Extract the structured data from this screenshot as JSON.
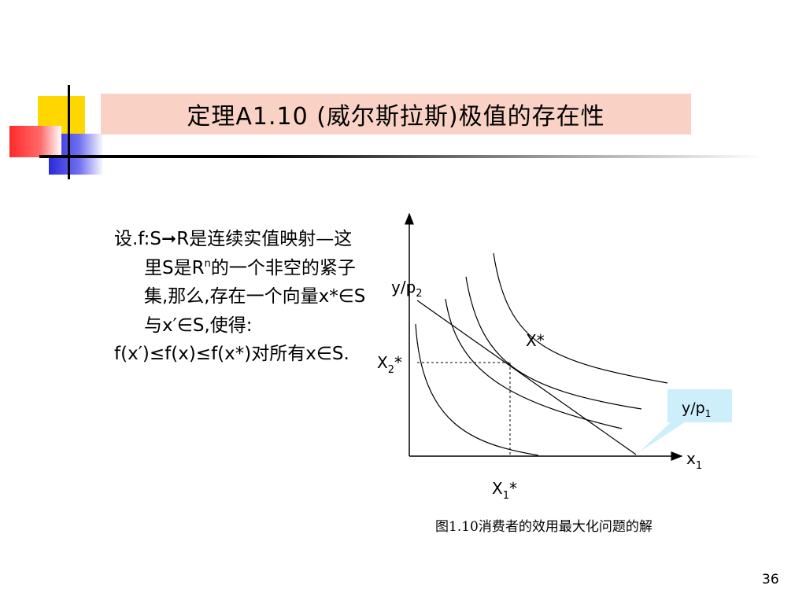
{
  "slide": {
    "title": "定理A1.10 (威尔斯拉斯)极值的存在性",
    "theorem": {
      "line1_start": "设.f:S",
      "arrow": "➞",
      "line1_end": "R是连续实值映射—这里S是R",
      "sup_n": "n",
      "line1_rest": "的一个非空的紧子集,那么,存在一个向量x*∈S与x′∈S,使得:",
      "line2": "f(x′)≤f(x)≤f(x*)对所有x∈S."
    },
    "graph": {
      "y_axis_label": "y/p",
      "y_axis_sub": "2",
      "x_axis_label": "x",
      "x_axis_sub": "1",
      "x2_label": "X",
      "x2_sub": "2",
      "x2_star": "*",
      "x1_label": "X",
      "x1_sub": "1",
      "x1_star": "*",
      "point_label": "X*",
      "callout_text": "y/p",
      "callout_sub": "1"
    },
    "caption": "图1.10消费者的效用最大化问题的解",
    "page_number": "36"
  },
  "colors": {
    "title_bg": "#fad2c5",
    "callout_bg": "#cdeefb",
    "deco_yellow": "#ffd700",
    "deco_blue": "#2a2ad8",
    "deco_red": "#ff2a2a"
  }
}
